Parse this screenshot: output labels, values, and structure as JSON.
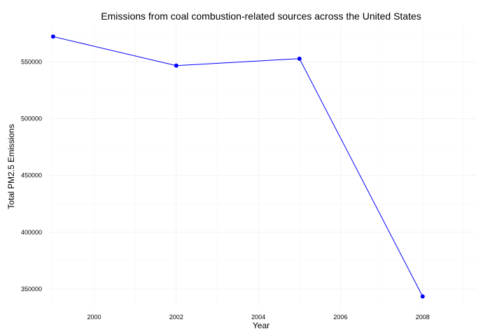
{
  "chart_data": {
    "type": "line",
    "title": "Emissions from coal combustion-related sources across the United States",
    "xlabel": "Year",
    "ylabel": "Total PM2.5 Emissions",
    "x": [
      1999,
      2002,
      2005,
      2008
    ],
    "series": [
      {
        "values": [
          572346,
          546789,
          552881,
          343432
        ]
      }
    ],
    "xlim": [
      1998.9,
      2009.3
    ],
    "ylim": [
      334500,
      583000
    ],
    "x_ticks": [
      2000,
      2002,
      2004,
      2006,
      2008
    ],
    "x_tick_labels": [
      "2000",
      "2002",
      "2004",
      "2006",
      "2008"
    ],
    "x_minor_ticks": [
      1999,
      2001,
      2003,
      2005,
      2007,
      2009
    ],
    "y_ticks": [
      350000,
      400000,
      450000,
      500000,
      550000
    ],
    "y_tick_labels": [
      "350000",
      "400000",
      "450000",
      "500000",
      "550000"
    ],
    "y_minor_ticks": [
      375000,
      425000,
      475000,
      525000,
      575000
    ],
    "grid": true,
    "legend": "none",
    "colors": {
      "line": "#0000ff",
      "marker": "#0000ff",
      "grid": "#ececec"
    }
  }
}
